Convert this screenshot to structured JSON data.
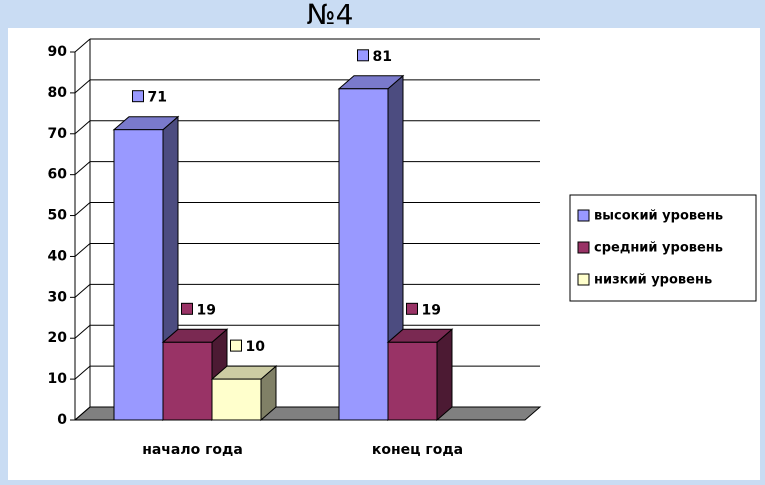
{
  "chart_data": {
    "type": "bar3d",
    "title": "№4",
    "categories": [
      "начало года",
      "конец года"
    ],
    "series": [
      {
        "name": "высокий уровень",
        "color": "#9999ff",
        "values": [
          71,
          81
        ]
      },
      {
        "name": "средний уровень",
        "color": "#993366",
        "values": [
          19,
          19
        ]
      },
      {
        "name": "низкий уровень",
        "color": "#ffffcc",
        "values": [
          10,
          null
        ]
      }
    ],
    "ylim": [
      0,
      90
    ],
    "yticks": [
      0,
      10,
      20,
      30,
      40,
      50,
      60,
      70,
      80,
      90
    ],
    "grid": true,
    "legend": "right"
  }
}
